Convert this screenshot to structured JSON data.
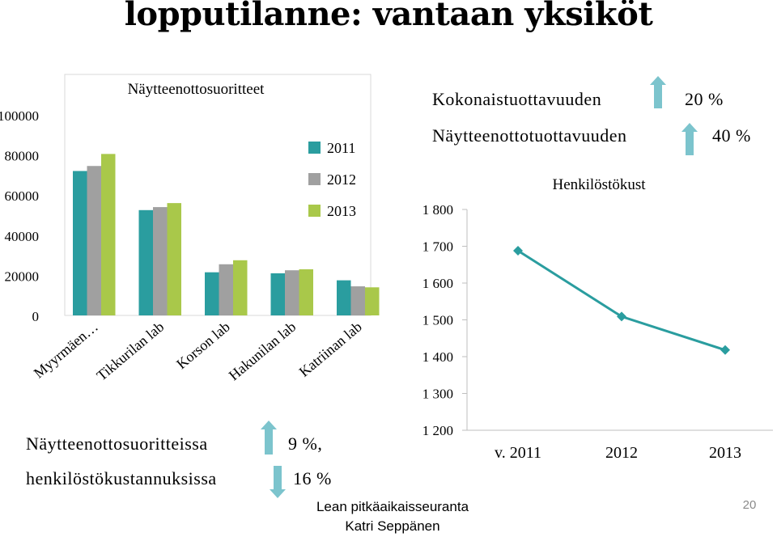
{
  "page": {
    "title": "lopputilanne: vantaan yksiköt",
    "footer_line1": "Lean pitkäaikaisseuranta",
    "footer_line2": "Katri Seppänen",
    "page_number": "20"
  },
  "metrics": {
    "top": [
      {
        "label": "Kokonaistuottavuuden",
        "value": "20 %",
        "direction": "up",
        "icon": "arrow-up-icon"
      },
      {
        "label": "Näytteenottotuottavuuden",
        "value": "40 %",
        "direction": "up",
        "icon": "arrow-up-icon"
      }
    ],
    "bottom": [
      {
        "label": "Näytteenottosuoritteissa",
        "value": "9 %,",
        "direction": "up",
        "icon": "arrow-up-icon"
      },
      {
        "label": "henkilöstökustannuksissa",
        "value": "16 %",
        "direction": "down",
        "icon": "arrow-down-icon"
      }
    ]
  },
  "colors": {
    "2011": "#2a9d9f",
    "2012": "#a0a0a0",
    "2013": "#a9c84a",
    "line": "#2a9d9f",
    "arrow": "#7cc4cd"
  },
  "chart_data": [
    {
      "type": "bar",
      "title": "Näytteenottosuoritteet",
      "categories": [
        "Myyrmäen…",
        "Tikkurilan lab",
        "Korson lab",
        "Hakunilan lab",
        "Katriinan lab"
      ],
      "series": [
        {
          "name": "2011",
          "values": [
            72000,
            52500,
            21500,
            21000,
            17500
          ]
        },
        {
          "name": "2012",
          "values": [
            74500,
            54000,
            25500,
            22500,
            14500
          ]
        },
        {
          "name": "2013",
          "values": [
            80500,
            56000,
            27500,
            23000,
            14000
          ]
        }
      ],
      "yticks": [
        "0",
        "20000",
        "40000",
        "60000",
        "80000",
        "100000"
      ],
      "ylim": [
        0,
        100000
      ],
      "grid": false,
      "legend": "right"
    },
    {
      "type": "line",
      "title": "Henkilöstökust",
      "categories": [
        "v. 2011",
        "2012",
        "2013"
      ],
      "series": [
        {
          "values": [
            1688,
            1509,
            1418
          ]
        }
      ],
      "yticks": [
        "1 200",
        "1 300",
        "1 400",
        "1 500",
        "1 600",
        "1 700",
        "1 800"
      ],
      "ylim": [
        1200,
        1800
      ],
      "grid": false
    }
  ]
}
